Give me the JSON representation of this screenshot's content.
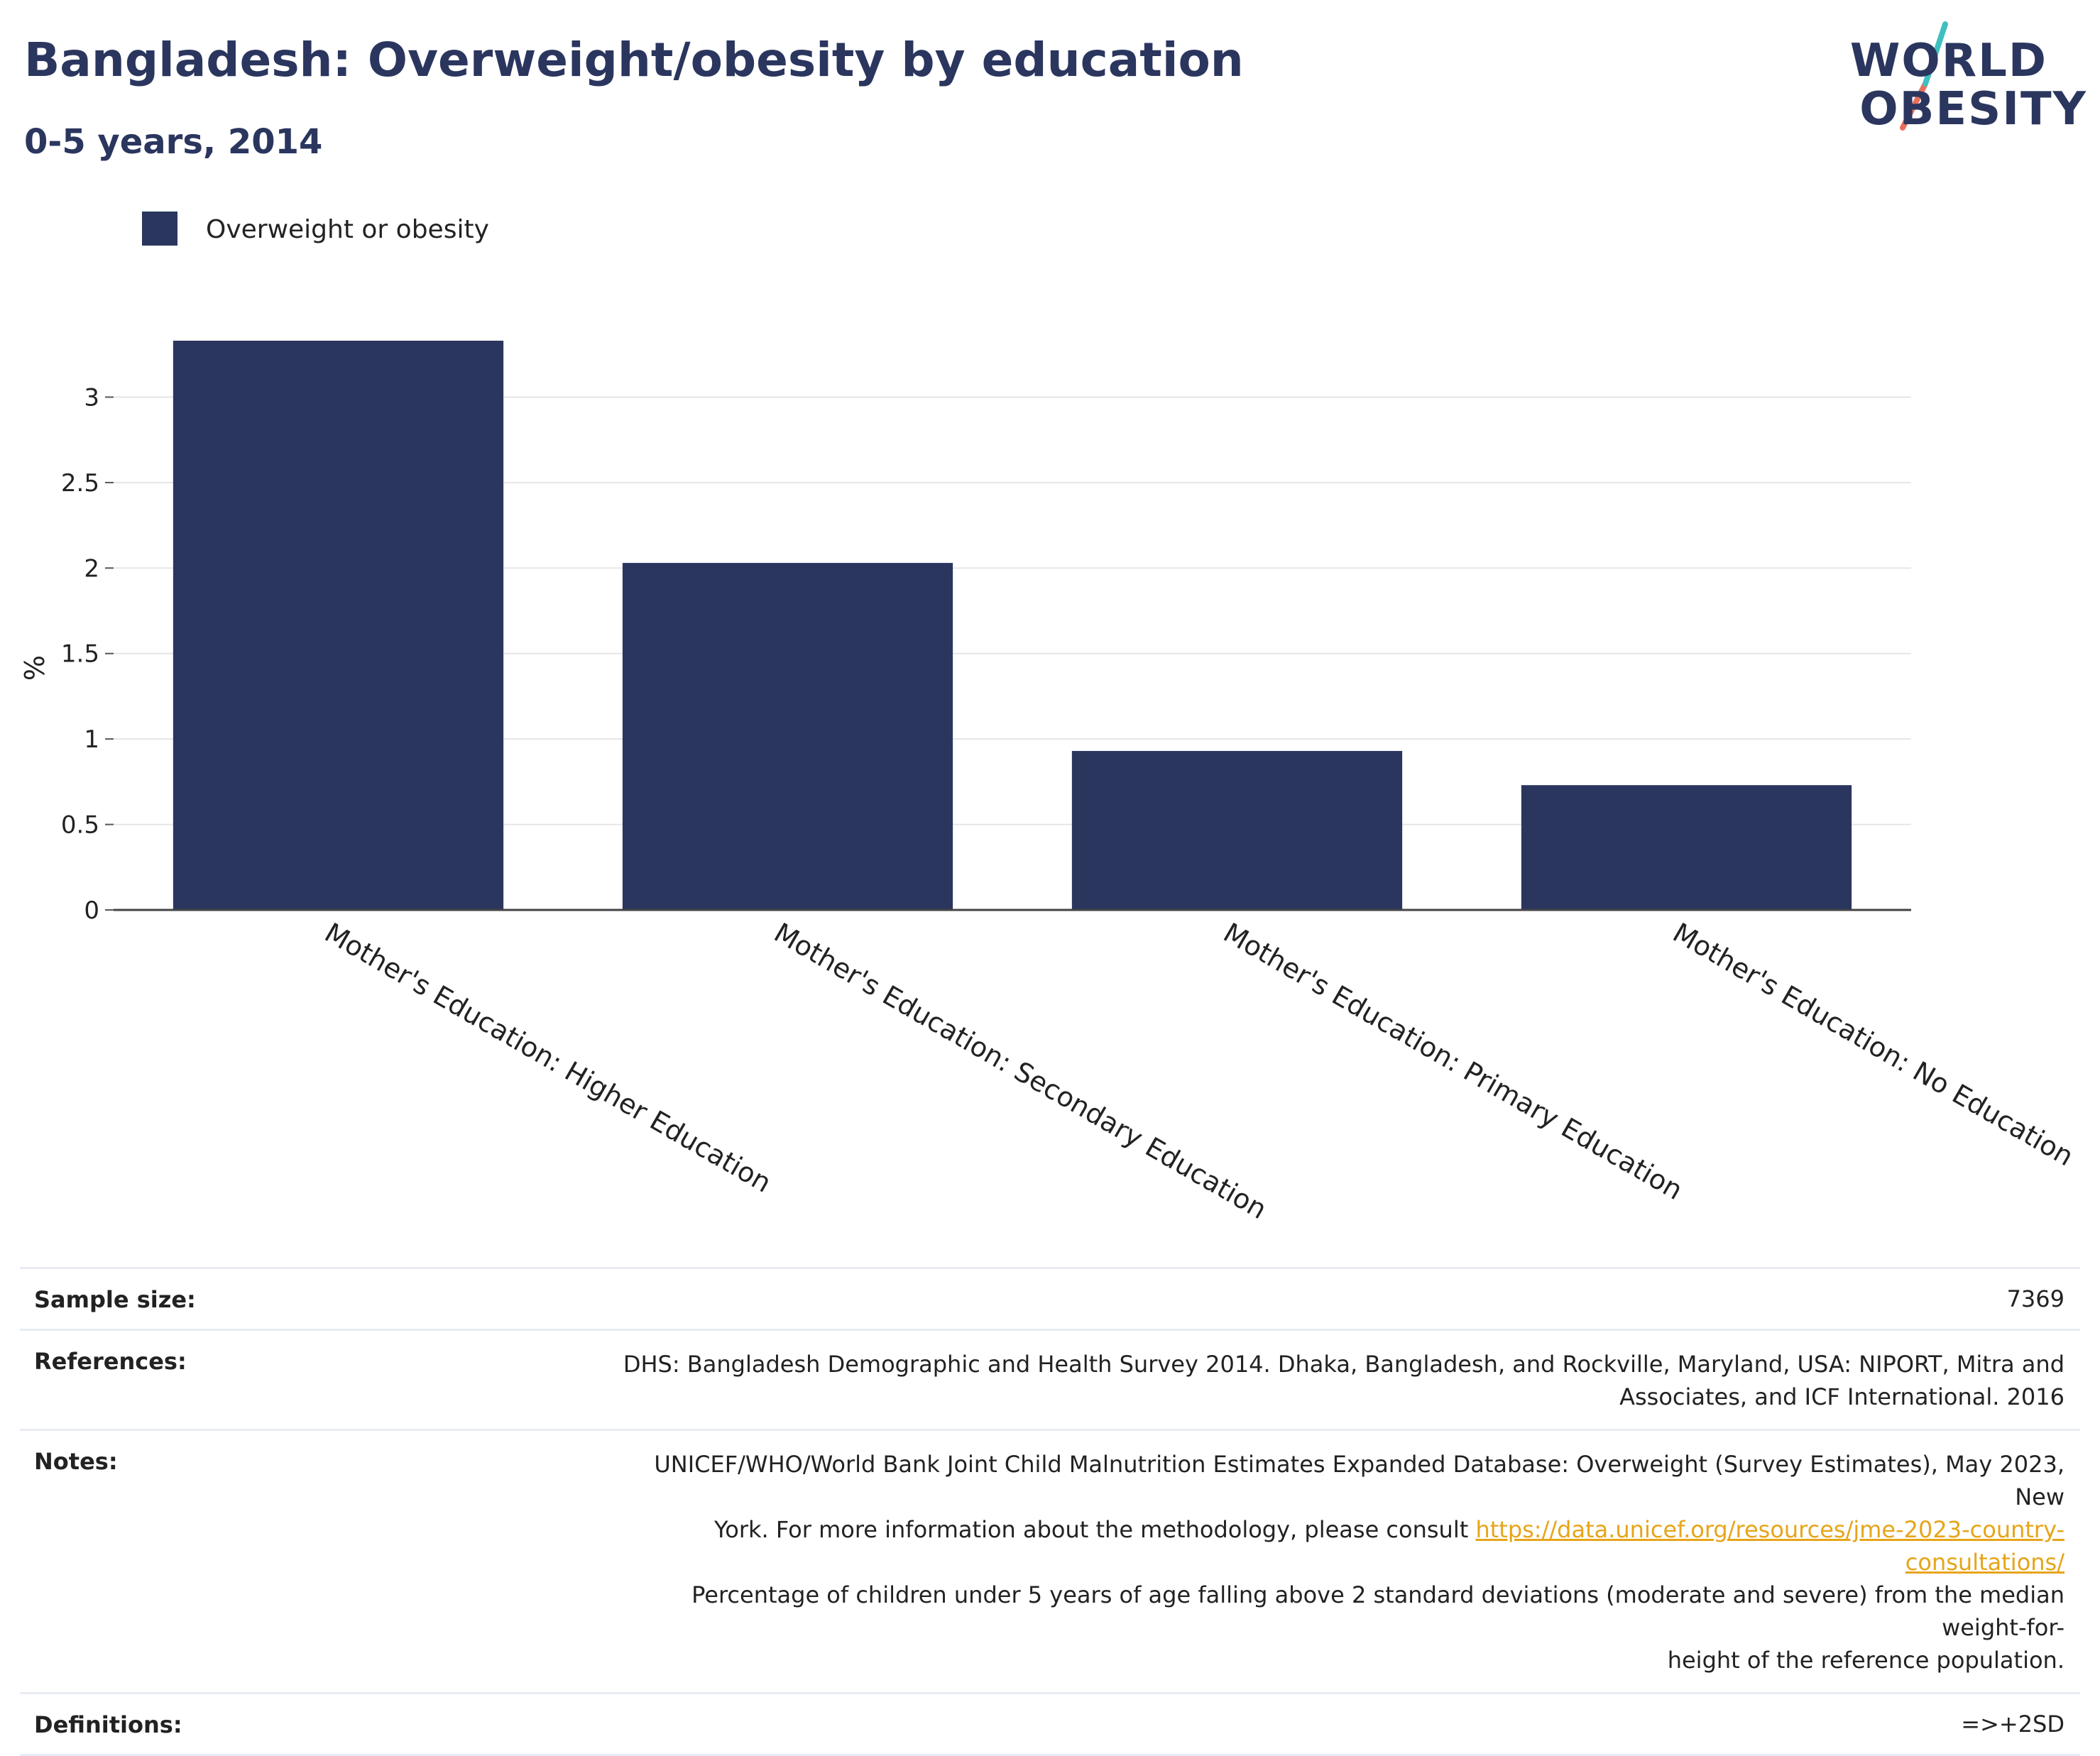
{
  "header": {
    "title": "Bangladesh: Overweight/obesity by education",
    "subtitle": "0-5 years, 2014"
  },
  "logo": {
    "line1": "WORLD",
    "line2": "OBESITY"
  },
  "colors": {
    "bar": "#2b365f",
    "title": "#2b365f",
    "accent_teal": "#3fbfbf",
    "accent_coral": "#e8705a",
    "link": "#e6a519"
  },
  "chart_data": {
    "type": "bar",
    "categories": [
      "Mother's Education: Higher Education",
      "Mother's Education: Secondary Education",
      "Mother's Education: Primary Education",
      "Mother's Education: No Education"
    ],
    "series": [
      {
        "name": "Overweight or obesity",
        "values": [
          3.33,
          2.03,
          0.93,
          0.73
        ]
      }
    ],
    "ylabel": "%",
    "xlabel": "",
    "ylim": [
      0,
      3.33
    ],
    "yticks": [
      0,
      0.5,
      1,
      1.5,
      2,
      2.5,
      3
    ],
    "ytick_labels": [
      "0",
      "0.5",
      "1",
      "1.5",
      "2",
      "2.5",
      "3"
    ],
    "grid": true,
    "legend_position": "top-left"
  },
  "info": {
    "sample_size": {
      "label": "Sample size:",
      "value": "7369"
    },
    "references": {
      "label": "References:",
      "line1": "DHS: Bangladesh Demographic and Health Survey 2014. Dhaka, Bangladesh, and Rockville, Maryland, USA: NIPORT, Mitra and",
      "line2": "Associates, and ICF International. 2016"
    },
    "notes": {
      "label": "Notes:",
      "line1": "UNICEF/WHO/World Bank Joint Child Malnutrition Estimates Expanded Database: Overweight (Survey Estimates), May 2023, New",
      "line2_prefix": "York. For more information about the methodology, please consult",
      "link": "https://data.unicef.org/resources/jme-2023-country-consultations/",
      "line3": "Percentage of children under 5 years of age falling above 2 standard deviations (moderate and severe) from the median weight-for-",
      "line4": "height of the reference population."
    },
    "definitions": {
      "label": "Definitions:",
      "value": "=>+2SD"
    }
  }
}
